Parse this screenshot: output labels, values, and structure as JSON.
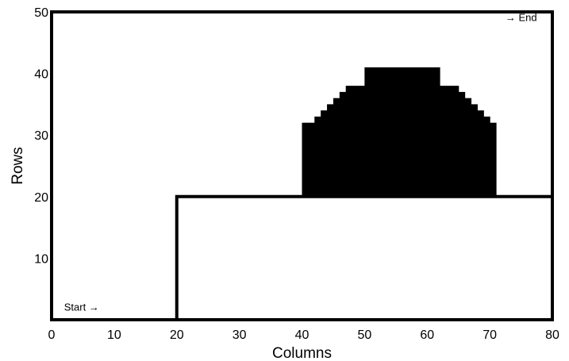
{
  "chart_data": {
    "type": "area",
    "title": "",
    "xlabel": "Columns",
    "ylabel": "Rows",
    "xlim": [
      0,
      80
    ],
    "ylim": [
      0,
      50
    ],
    "x_ticks": [
      0,
      10,
      20,
      30,
      40,
      50,
      60,
      70,
      80
    ],
    "y_ticks": [
      10,
      20,
      30,
      40,
      50
    ],
    "grid": false,
    "boundary_line": {
      "points": [
        [
          0,
          0
        ],
        [
          20,
          0
        ],
        [
          20,
          20
        ],
        [
          80,
          20
        ]
      ]
    },
    "filled_region": {
      "columns": [
        {
          "x0": 40,
          "x1": 41,
          "top": 32
        },
        {
          "x0": 41,
          "x1": 42,
          "top": 32
        },
        {
          "x0": 42,
          "x1": 43,
          "top": 33
        },
        {
          "x0": 43,
          "x1": 44,
          "top": 34
        },
        {
          "x0": 44,
          "x1": 45,
          "top": 35
        },
        {
          "x0": 45,
          "x1": 46,
          "top": 36
        },
        {
          "x0": 46,
          "x1": 47,
          "top": 37
        },
        {
          "x0": 47,
          "x1": 50,
          "top": 38
        },
        {
          "x0": 50,
          "x1": 62,
          "top": 41
        },
        {
          "x0": 62,
          "x1": 65,
          "top": 38
        },
        {
          "x0": 65,
          "x1": 66,
          "top": 37
        },
        {
          "x0": 66,
          "x1": 67,
          "top": 36
        },
        {
          "x0": 67,
          "x1": 68,
          "top": 35
        },
        {
          "x0": 68,
          "x1": 69,
          "top": 34
        },
        {
          "x0": 69,
          "x1": 70,
          "top": 33
        },
        {
          "x0": 70,
          "x1": 71,
          "top": 32
        }
      ],
      "bottom": 20
    },
    "annotations": [
      {
        "text": "Start",
        "arrow": "→",
        "arrow_side": "after",
        "x": 2,
        "y": 1.5
      },
      {
        "text": "End",
        "arrow": "→",
        "arrow_side": "before",
        "x": 72.5,
        "y": 48.5
      }
    ]
  }
}
